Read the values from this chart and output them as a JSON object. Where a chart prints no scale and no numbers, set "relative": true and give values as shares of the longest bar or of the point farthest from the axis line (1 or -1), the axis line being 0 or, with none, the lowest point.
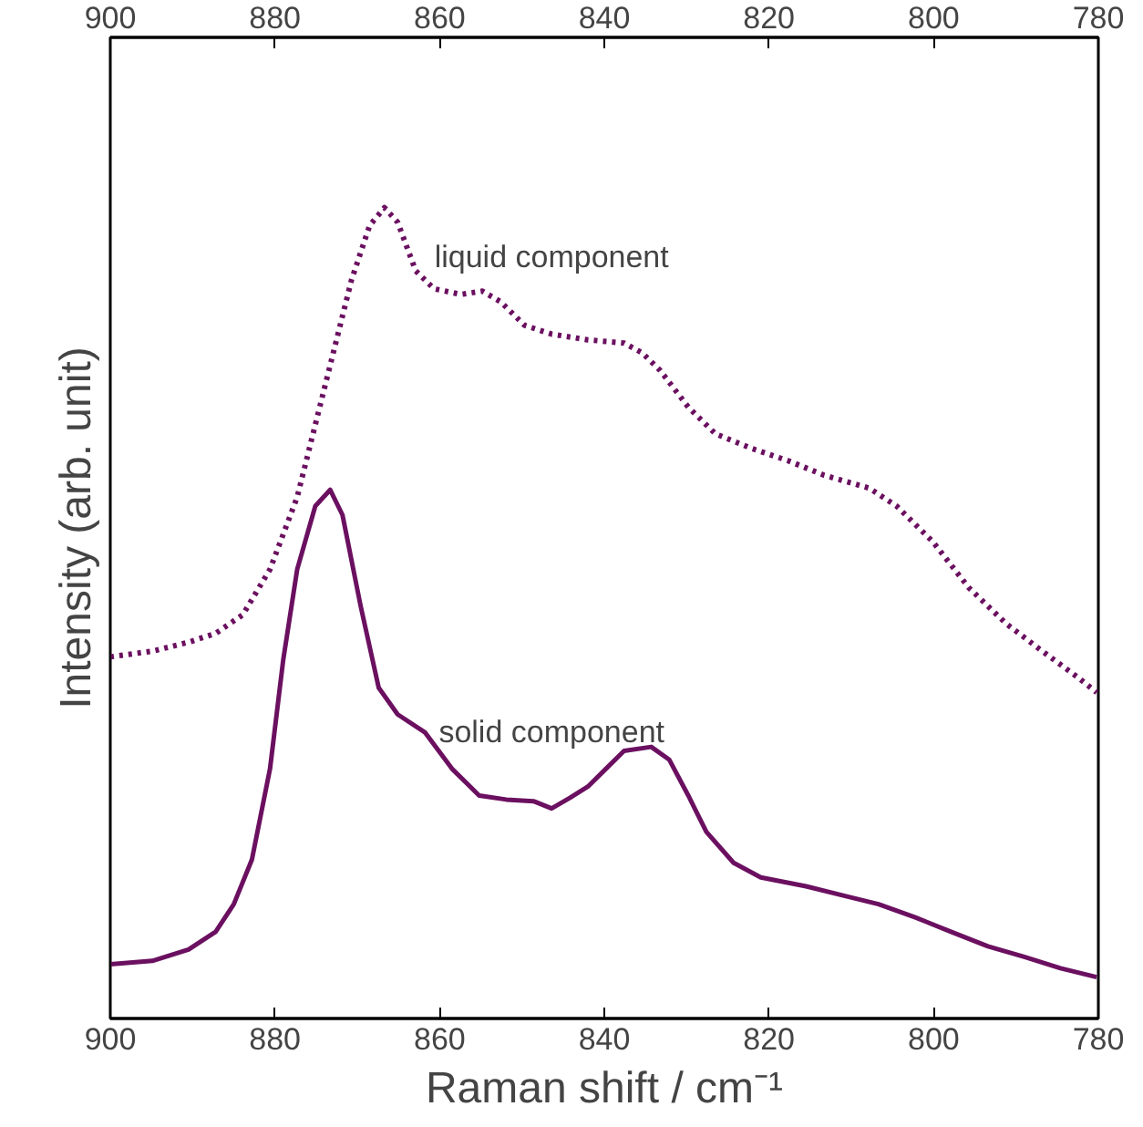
{
  "chart_data": {
    "type": "line",
    "relative": true,
    "xlabel": "Raman shift / cm⁻¹",
    "ylabel": "Intensity (arb. unit)",
    "xlim": [
      900,
      780
    ],
    "xticks": [
      900,
      880,
      860,
      840,
      820,
      800,
      780
    ],
    "x2lim": [
      900,
      780
    ],
    "x2ticks": [
      900,
      880,
      860,
      840,
      820,
      800,
      780
    ],
    "grid": false,
    "marker": "none",
    "series": [
      {
        "name": "liquid component",
        "color": "#6b1060",
        "line_style": "dotted",
        "x": [
          900,
          894.9,
          890.5,
          887.2,
          883.9,
          880.6,
          877.3,
          874,
          870.7,
          868.5,
          866.7,
          865.1,
          862.9,
          860.7,
          857.4,
          854.8,
          852.6,
          849.7,
          846.4,
          842,
          837.6,
          835.4,
          833.2,
          829.8,
          826.5,
          822.1,
          817.7,
          813.3,
          807.8,
          804.5,
          800.1,
          795.7,
          791.2,
          786.8,
          782.4,
          780.2
        ],
        "values": [
          0.446,
          0.453,
          0.464,
          0.475,
          0.498,
          0.554,
          0.643,
          0.777,
          0.911,
          0.978,
          1.0,
          0.982,
          0.922,
          0.9,
          0.893,
          0.897,
          0.884,
          0.855,
          0.844,
          0.837,
          0.833,
          0.821,
          0.799,
          0.754,
          0.721,
          0.703,
          0.688,
          0.67,
          0.654,
          0.632,
          0.588,
          0.531,
          0.487,
          0.453,
          0.42,
          0.402
        ]
      },
      {
        "name": "solid component",
        "color": "#6b1060",
        "line_style": "solid",
        "x": [
          900,
          894.9,
          890.5,
          887.2,
          885,
          882.8,
          880.6,
          879,
          877.3,
          875.1,
          873.3,
          871.8,
          869.6,
          867.4,
          865.1,
          861.8,
          858.5,
          855.2,
          851.9,
          848.6,
          846.4,
          844.2,
          842,
          839.8,
          837.6,
          834.3,
          832.1,
          829.8,
          827.6,
          824.3,
          821,
          815.5,
          811.1,
          806.7,
          802.3,
          797.9,
          793.4,
          789,
          784.6,
          780.2
        ],
        "values": [
          0.067,
          0.071,
          0.085,
          0.107,
          0.141,
          0.196,
          0.308,
          0.442,
          0.554,
          0.632,
          0.652,
          0.621,
          0.509,
          0.408,
          0.375,
          0.353,
          0.308,
          0.275,
          0.27,
          0.268,
          0.259,
          0.272,
          0.286,
          0.308,
          0.33,
          0.335,
          0.319,
          0.275,
          0.23,
          0.192,
          0.174,
          0.163,
          0.152,
          0.141,
          0.125,
          0.107,
          0.089,
          0.076,
          0.062,
          0.051
        ]
      }
    ]
  }
}
